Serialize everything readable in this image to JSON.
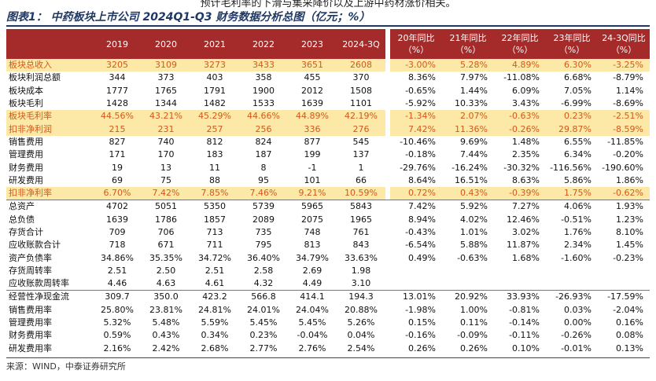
{
  "intro": "预计毛利率的下滑与集采降价以及上游中药材涨价相关。",
  "title": "图表1：  中药板块上市公司 2024Q1-Q3 财务数据分析总图（亿元；%）",
  "table": {
    "headers": [
      "2019",
      "2020",
      "2021",
      "2022",
      "2023",
      "2024-3Q"
    ],
    "yoy_headers": [
      "20年同比（%）",
      "21年同比（%）",
      "22年同比（%）",
      "23年同比（%）",
      "24-3Q同比（%）"
    ],
    "sections": [
      {
        "rows": [
          {
            "label": "板块总收入",
            "highlight": true,
            "values": [
              "3205",
              "3109",
              "3273",
              "3433",
              "3651",
              "2608"
            ],
            "yoy": [
              "-3.00%",
              "5.28%",
              "4.89%",
              "6.30%",
              "-3.25%"
            ]
          },
          {
            "label": "板块利润总额",
            "values": [
              "344",
              "373",
              "403",
              "358",
              "455",
              "370"
            ],
            "yoy": [
              "8.36%",
              "7.97%",
              "-11.08%",
              "6.68%",
              "-8.79%"
            ]
          },
          {
            "label": "板块成本",
            "values": [
              "1777",
              "1765",
              "1791",
              "1900",
              "2012",
              "1508"
            ],
            "yoy": [
              "-0.65%",
              "1.44%",
              "6.09%",
              "7.05%",
              "1.14%"
            ]
          },
          {
            "label": "板块毛利",
            "values": [
              "1428",
              "1344",
              "1482",
              "1533",
              "1639",
              "1101"
            ],
            "yoy": [
              "-5.92%",
              "10.33%",
              "3.43%",
              "-6.99%",
              "-8.69%"
            ]
          },
          {
            "label": "板块毛利率",
            "highlight": true,
            "values": [
              "44.56%",
              "43.21%",
              "45.29%",
              "44.66%",
              "44.89%",
              "42.19%"
            ],
            "yoy": [
              "-1.34%",
              "2.07%",
              "-0.63%",
              "0.23%",
              "-2.51%"
            ]
          },
          {
            "label": "扣非净利润",
            "highlight": true,
            "values": [
              "215",
              "231",
              "257",
              "256",
              "336",
              "276"
            ],
            "yoy": [
              "7.42%",
              "11.36%",
              "-0.26%",
              "29.87%",
              "-8.59%"
            ]
          },
          {
            "label": "销售费用",
            "values": [
              "827",
              "740",
              "812",
              "824",
              "877",
              "545"
            ],
            "yoy": [
              "-10.46%",
              "9.69%",
              "1.48%",
              "6.55%",
              "-11.85%"
            ]
          },
          {
            "label": "管理费用",
            "values": [
              "171",
              "170",
              "183",
              "187",
              "199",
              "137"
            ],
            "yoy": [
              "-0.18%",
              "7.44%",
              "2.35%",
              "6.34%",
              "-0.20%"
            ]
          },
          {
            "label": "财务费用",
            "values": [
              "19",
              "13",
              "11",
              "8",
              "-1",
              "1"
            ],
            "yoy": [
              "-29.76%",
              "-16.24%",
              "-30.32%",
              "-116.56%",
              "-190.60%"
            ]
          },
          {
            "label": "研发费用",
            "values": [
              "69",
              "75",
              "88",
              "95",
              "101",
              "66"
            ],
            "yoy": [
              "8.64%",
              "16.51%",
              "8.63%",
              "5.86%",
              "1.86%"
            ]
          },
          {
            "label": "扣非净利率",
            "highlight": true,
            "values": [
              "6.70%",
              "7.42%",
              "7.85%",
              "7.46%",
              "9.21%",
              "10.59%"
            ],
            "yoy": [
              "0.72%",
              "0.43%",
              "-0.39%",
              "1.75%",
              "-0.62%"
            ]
          }
        ]
      },
      {
        "rows": [
          {
            "label": "总资产",
            "values": [
              "4702",
              "5051",
              "5350",
              "5739",
              "5965",
              "5843"
            ],
            "yoy": [
              "7.42%",
              "5.92%",
              "7.27%",
              "4.06%",
              "1.93%"
            ]
          },
          {
            "label": "总负债",
            "values": [
              "1639",
              "1786",
              "1857",
              "2089",
              "2075",
              "1965"
            ],
            "yoy": [
              "8.94%",
              "4.02%",
              "12.46%",
              "-0.51%",
              "1.23%"
            ]
          },
          {
            "label": "存货合计",
            "values": [
              "709",
              "706",
              "713",
              "735",
              "748",
              "761"
            ],
            "yoy": [
              "-0.43%",
              "1.01%",
              "3.02%",
              "1.76%",
              "8.10%"
            ]
          },
          {
            "label": "应收账款合计",
            "values": [
              "718",
              "671",
              "711",
              "795",
              "813",
              "843"
            ],
            "yoy": [
              "-6.54%",
              "5.88%",
              "11.87%",
              "2.34%",
              "1.45%"
            ]
          },
          {
            "label": "资产负债率",
            "values": [
              "34.86%",
              "35.35%",
              "34.72%",
              "36.40%",
              "34.79%",
              "33.63%"
            ],
            "yoy": [
              "0.49%",
              "-0.63%",
              "1.68%",
              "-1.60%",
              "-0.23%"
            ]
          },
          {
            "label": "存货周转率",
            "values": [
              "2.51",
              "2.50",
              "2.51",
              "2.58",
              "2.69",
              "1.98"
            ],
            "yoy": [
              null,
              null,
              null,
              null,
              null
            ]
          },
          {
            "label": "应收账款周转率",
            "values": [
              "4.46",
              "4.63",
              "4.61",
              "4.32",
              "4.49",
              "3.10"
            ],
            "yoy": [
              null,
              null,
              null,
              null,
              null
            ]
          }
        ]
      },
      {
        "rows": [
          {
            "label": "经营性净现金流",
            "values": [
              "309.7",
              "350.0",
              "423.2",
              "566.8",
              "414.1",
              "194.3"
            ],
            "yoy": [
              "13.01%",
              "20.92%",
              "33.93%",
              "-26.93%",
              "-17.59%"
            ]
          },
          {
            "label": "销售费用率",
            "values": [
              "25.80%",
              "23.81%",
              "24.81%",
              "24.01%",
              "24.04%",
              "20.88%"
            ],
            "yoy": [
              "-1.98%",
              "1.00%",
              "-0.81%",
              "0.03%",
              "-2.04%"
            ]
          },
          {
            "label": "管理费用率",
            "values": [
              "5.32%",
              "5.48%",
              "5.59%",
              "5.45%",
              "5.45%",
              "5.26%"
            ],
            "yoy": [
              "0.15%",
              "0.11%",
              "-0.14%",
              "0.00%",
              "0.16%"
            ]
          },
          {
            "label": "财务费用率",
            "values": [
              "0.59%",
              "0.43%",
              "0.34%",
              "0.23%",
              "-0.04%",
              "0.04%"
            ],
            "yoy": [
              "-0.16%",
              "-0.09%",
              "-0.11%",
              "-0.26%",
              "0.08%"
            ]
          },
          {
            "label": "研发费用率",
            "values": [
              "2.16%",
              "2.42%",
              "2.68%",
              "2.77%",
              "2.76%",
              "2.54%"
            ],
            "yoy": [
              "0.26%",
              "0.26%",
              "0.10%",
              "-0.01%",
              "0.13%"
            ]
          }
        ]
      }
    ]
  },
  "source": "来源：WIND，中泰证券研究所"
}
